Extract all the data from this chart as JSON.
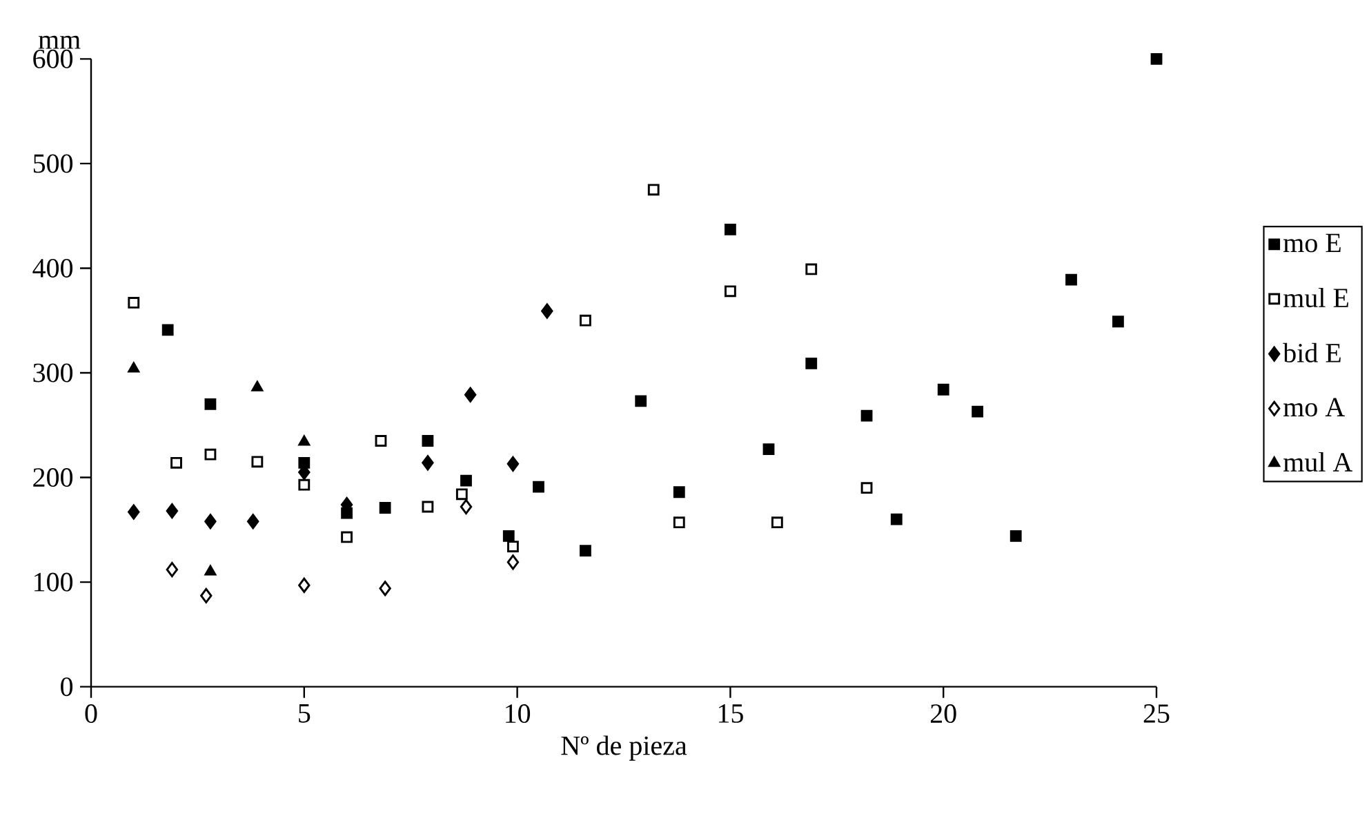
{
  "chart_data": {
    "type": "scatter",
    "xlabel": "Nº de pieza",
    "ylabel": "mm",
    "xlim": [
      0,
      25
    ],
    "ylim": [
      0,
      600
    ],
    "xticks": [
      0,
      5,
      10,
      15,
      20,
      25
    ],
    "yticks": [
      0,
      100,
      200,
      300,
      400,
      500,
      600
    ],
    "grid": false,
    "legend": "right",
    "series": [
      {
        "name": "mo E",
        "color": "#000000",
        "marker": "square",
        "x": [
          1.8,
          2.8,
          5,
          6,
          6.9,
          7.9,
          8.8,
          9.8,
          10.5,
          11.6,
          12.9,
          13.8,
          15,
          15.9,
          16.9,
          18.2,
          18.9,
          20,
          20.8,
          21.7,
          23,
          24.1,
          25
        ],
        "values": [
          341,
          270,
          214,
          166,
          171,
          235,
          197,
          144,
          191,
          130,
          273,
          186,
          437,
          227,
          309,
          259,
          160,
          284,
          263,
          144,
          389,
          349,
          600
        ]
      },
      {
        "name": "mul E",
        "color": "#000000",
        "marker": "square",
        "x": [
          1,
          2,
          2.8,
          3.9,
          5,
          6,
          6.8,
          7.9,
          8.7,
          9.9,
          11.6,
          13.2,
          13.8,
          15,
          16.1,
          16.9,
          18.2
        ],
        "values": [
          367,
          214,
          222,
          215,
          193,
          143,
          235,
          172,
          184,
          134,
          350,
          475,
          157,
          378,
          157,
          399,
          190
        ]
      },
      {
        "name": "bid E",
        "color": "#000000",
        "marker": "diamond",
        "x": [
          1,
          1.9,
          2.8,
          3.8,
          5,
          6,
          7.9,
          8.9,
          9.9,
          10.7
        ],
        "values": [
          167,
          168,
          158,
          158,
          205,
          174,
          214,
          279,
          213,
          359
        ]
      },
      {
        "name": "mo A",
        "color": "#000000",
        "marker": "diamond",
        "x": [
          1.9,
          2.7,
          5,
          6.9,
          8.8,
          9.9
        ],
        "values": [
          112,
          87,
          97,
          94,
          172,
          119
        ]
      },
      {
        "name": "mul A",
        "color": "#000000",
        "marker": "triangle",
        "x": [
          1,
          2.8,
          3.9,
          5
        ],
        "values": [
          304,
          110,
          286,
          234
        ]
      }
    ]
  }
}
